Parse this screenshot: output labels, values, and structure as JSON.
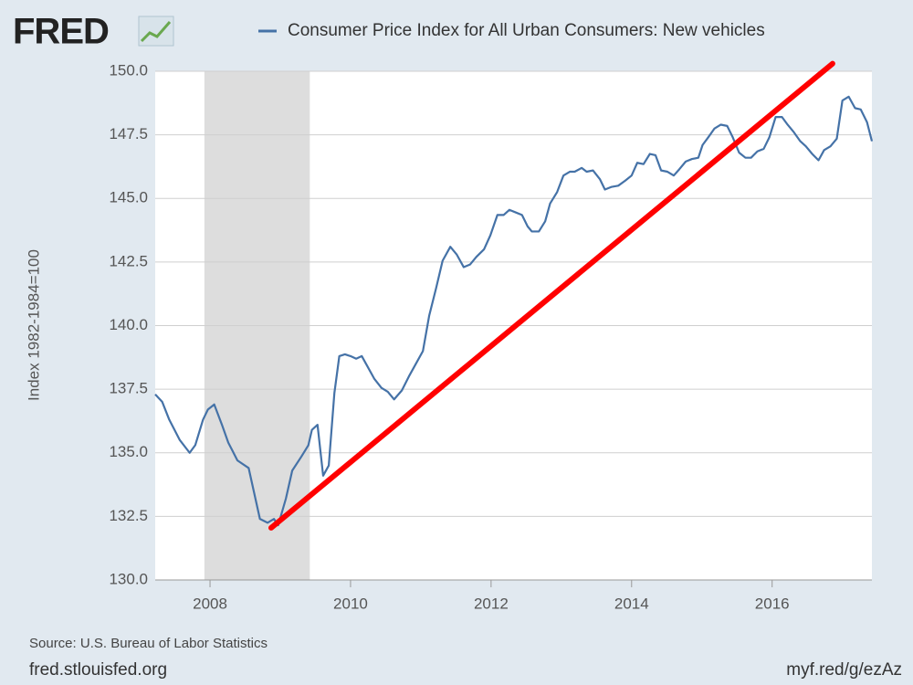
{
  "chart_data": {
    "type": "line",
    "logo": "FRED",
    "ylabel": "Index 1982-1984=100",
    "source": "Source: U.S. Bureau of Labor Statistics",
    "site": "fred.stlouisfed.org",
    "short_url": "myf.red/g/ezAz",
    "xlim": [
      2007.22,
      2017.42
    ],
    "xticks": [
      2008,
      2010,
      2012,
      2014,
      2016
    ],
    "ylim": [
      130,
      150
    ],
    "yticks": [
      {
        "value": 130,
        "label": "130.0"
      },
      132.5,
      {
        "value": 135,
        "label": "135.0"
      },
      137.5,
      {
        "value": 140,
        "label": "140.0"
      },
      142.5,
      {
        "value": 145,
        "label": "145.0"
      },
      147.5,
      {
        "value": 150,
        "label": "150.0"
      }
    ],
    "grid": true,
    "recession": {
      "start": 2007.92,
      "end": 2009.42,
      "color": "#dddddd"
    },
    "annotation_line": {
      "x": [
        2008.87,
        2016.86
      ],
      "y": [
        132.05,
        150.3
      ],
      "color": "#ff0000"
    },
    "x": [
      2007.22,
      2007.32,
      2007.42,
      2007.57,
      2007.71,
      2007.79,
      2007.9,
      2007.97,
      2008.06,
      2008.17,
      2008.26,
      2008.39,
      2008.55,
      2008.71,
      2008.82,
      2008.91,
      2008.97,
      2009.08,
      2009.17,
      2009.3,
      2009.4,
      2009.45,
      2009.53,
      2009.61,
      2009.69,
      2009.77,
      2009.84,
      2009.92,
      2010.0,
      2010.08,
      2010.16,
      2010.23,
      2010.34,
      2010.44,
      2010.53,
      2010.62,
      2010.73,
      2010.83,
      2010.92,
      2011.03,
      2011.12,
      2011.22,
      2011.31,
      2011.42,
      2011.51,
      2011.61,
      2011.7,
      2011.79,
      2011.9,
      2011.99,
      2012.09,
      2012.18,
      2012.26,
      2012.35,
      2012.44,
      2012.52,
      2012.58,
      2012.68,
      2012.77,
      2012.84,
      2012.94,
      2013.03,
      2013.12,
      2013.19,
      2013.29,
      2013.36,
      2013.45,
      2013.55,
      2013.62,
      2013.71,
      2013.81,
      2013.91,
      2014.0,
      2014.08,
      2014.17,
      2014.26,
      2014.34,
      2014.42,
      2014.51,
      2014.6,
      2014.68,
      2014.77,
      2014.86,
      2014.95,
      2015.01,
      2015.09,
      2015.18,
      2015.27,
      2015.36,
      2015.44,
      2015.53,
      2015.62,
      2015.7,
      2015.79,
      2015.88,
      2015.96,
      2016.05,
      2016.14,
      2016.22,
      2016.31,
      2016.4,
      2016.48,
      2016.57,
      2016.66,
      2016.74,
      2016.83,
      2016.92,
      2017.0,
      2017.09,
      2017.18,
      2017.26,
      2017.35,
      2017.42
    ],
    "series": [
      {
        "name": "Consumer Price Index for All Urban Consumers: New vehicles",
        "color": "#4572a7",
        "values": [
          137.3,
          137.0,
          136.3,
          135.5,
          135.0,
          135.3,
          136.3,
          136.7,
          136.9,
          136.1,
          135.4,
          134.7,
          134.4,
          132.4,
          132.25,
          132.4,
          132.15,
          133.2,
          134.3,
          134.85,
          135.3,
          135.9,
          136.1,
          134.1,
          134.5,
          137.35,
          138.8,
          138.87,
          138.8,
          138.7,
          138.8,
          138.45,
          137.9,
          137.55,
          137.4,
          137.1,
          137.45,
          138.0,
          138.45,
          139.0,
          140.4,
          141.5,
          142.55,
          143.1,
          142.8,
          142.3,
          142.4,
          142.7,
          143.0,
          143.55,
          144.35,
          144.35,
          144.55,
          144.45,
          144.35,
          143.9,
          143.7,
          143.7,
          144.1,
          144.8,
          145.25,
          145.9,
          146.05,
          146.05,
          146.2,
          146.05,
          146.1,
          145.75,
          145.35,
          145.45,
          145.5,
          145.7,
          145.9,
          146.4,
          146.35,
          146.75,
          146.7,
          146.1,
          146.05,
          145.9,
          146.15,
          146.45,
          146.55,
          146.6,
          147.1,
          147.4,
          147.75,
          147.9,
          147.85,
          147.4,
          146.8,
          146.6,
          146.6,
          146.85,
          146.95,
          147.4,
          148.2,
          148.2,
          147.9,
          147.6,
          147.25,
          147.05,
          146.75,
          146.5,
          146.9,
          147.05,
          147.35,
          148.85,
          149.0,
          148.55,
          148.5,
          148.0,
          147.25
        ]
      }
    ]
  }
}
